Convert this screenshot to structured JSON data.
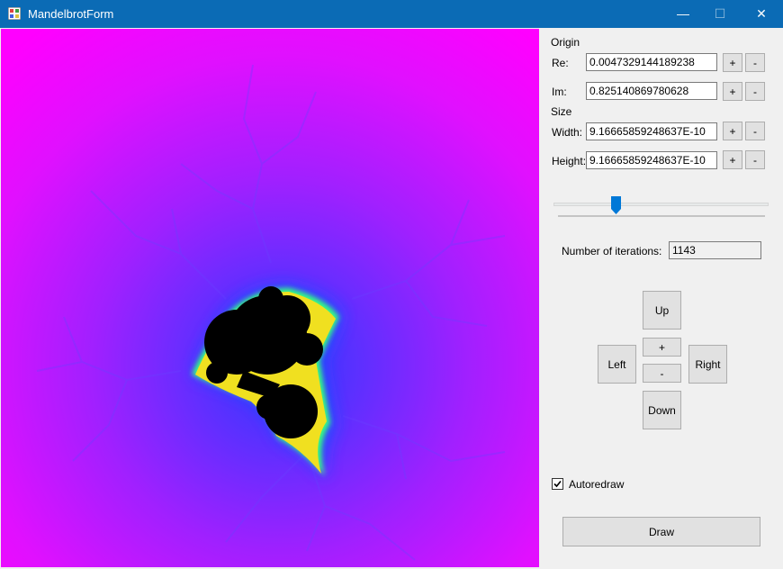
{
  "window": {
    "title": "MandelbrotForm",
    "minimize_glyph": "—",
    "maximize_glyph": "☐",
    "close_glyph": "✕"
  },
  "origin": {
    "section_label": "Origin",
    "re": {
      "label": "Re:",
      "value": "0.0047329144189238"
    },
    "im": {
      "label": "Im:",
      "value": "0.825140869780628"
    }
  },
  "size": {
    "section_label": "Size",
    "width": {
      "label": "Width:",
      "value": "9.16665859248637E-10"
    },
    "height": {
      "label": "Height:",
      "value": "9.16665859248637E-10"
    }
  },
  "buttons": {
    "plus": "+",
    "minus": "-"
  },
  "slider": {
    "value_fraction": 0.28
  },
  "iterations": {
    "label": "Number of iterations:",
    "value": "1143"
  },
  "navigation": {
    "up": "Up",
    "down": "Down",
    "left": "Left",
    "right": "Right",
    "zoom_in": "+",
    "zoom_out": "-"
  },
  "autoredraw": {
    "label": "Autoredraw",
    "checked": true
  },
  "draw_button": "Draw",
  "colors": {
    "titlebar": "#0b6bb5",
    "background_magenta": "#ff00ff",
    "background_purple": "#7a28ff",
    "set_interior": "#000000",
    "boundary_glow": "#38ff80",
    "slider_thumb": "#0078d7"
  }
}
